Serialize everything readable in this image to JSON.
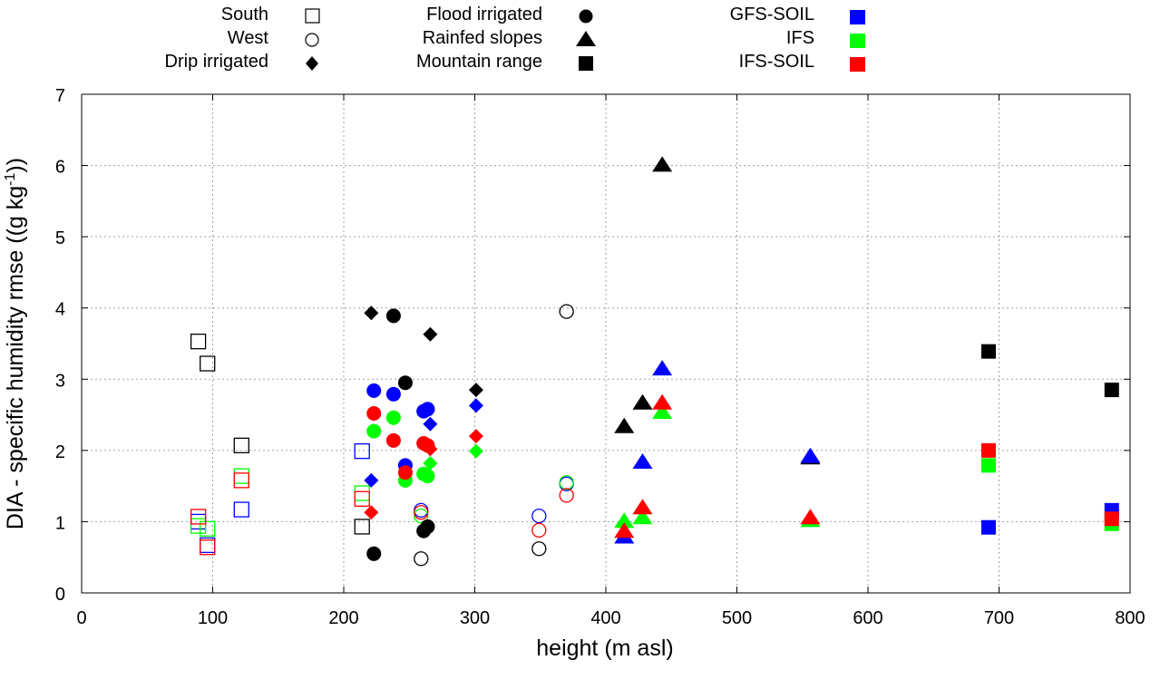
{
  "chart_data": {
    "type": "scatter",
    "title": "",
    "xlabel": "height (m asl)",
    "ylabel_main": "DIA - specific humidity rmse ((g kg",
    "ylabel_sup": "-1",
    "ylabel_end": "))",
    "xlim": [
      0,
      800
    ],
    "ylim": [
      0,
      7
    ],
    "xticks": [
      0,
      100,
      200,
      300,
      400,
      500,
      600,
      700,
      800
    ],
    "yticks": [
      0,
      1,
      2,
      3,
      4,
      5,
      6,
      7
    ],
    "grid": true,
    "legend_position": "top",
    "colors": {
      "OBS": "#000000",
      "GFS-SOIL": "#0000ff",
      "IFS": "#00ff00",
      "IFS-SOIL": "#ff0000"
    },
    "legend": {
      "regions": [
        {
          "label": "South",
          "marker": "open-square"
        },
        {
          "label": "West",
          "marker": "open-circle"
        },
        {
          "label": "Drip irrigated",
          "marker": "filled-diamond"
        },
        {
          "label": "Flood irrigated",
          "marker": "filled-circle"
        },
        {
          "label": "Rainfed slopes",
          "marker": "filled-triangle"
        },
        {
          "label": "Mountain range",
          "marker": "filled-square"
        }
      ],
      "models": [
        {
          "label": "GFS-SOIL",
          "color": "#0000ff"
        },
        {
          "label": "IFS",
          "color": "#00ff00"
        },
        {
          "label": "IFS-SOIL",
          "color": "#ff0000"
        }
      ]
    },
    "series": [
      {
        "region": "South",
        "model": "OBS",
        "marker": "open-square",
        "points": [
          [
            89,
            3.53
          ],
          [
            96,
            3.22
          ],
          [
            122,
            2.07
          ],
          [
            214,
            0.93
          ]
        ]
      },
      {
        "region": "South",
        "model": "GFS-SOIL",
        "marker": "open-square",
        "points": [
          [
            89,
            1.0
          ],
          [
            96,
            0.67
          ],
          [
            122,
            1.17
          ],
          [
            214,
            1.99
          ]
        ]
      },
      {
        "region": "South",
        "model": "IFS",
        "marker": "open-square",
        "points": [
          [
            89,
            0.94
          ],
          [
            96,
            0.9
          ],
          [
            122,
            1.64
          ],
          [
            214,
            1.4
          ]
        ]
      },
      {
        "region": "South",
        "model": "IFS-SOIL",
        "marker": "open-square",
        "points": [
          [
            89,
            1.07
          ],
          [
            96,
            0.64
          ],
          [
            122,
            1.58
          ],
          [
            214,
            1.32
          ]
        ]
      },
      {
        "region": "West",
        "model": "OBS",
        "marker": "open-circle",
        "points": [
          [
            259,
            0.48
          ],
          [
            349,
            0.62
          ],
          [
            370,
            3.95
          ]
        ]
      },
      {
        "region": "West",
        "model": "GFS-SOIL",
        "marker": "open-circle",
        "points": [
          [
            259,
            1.16
          ],
          [
            349,
            1.08
          ],
          [
            370,
            1.53
          ]
        ]
      },
      {
        "region": "West",
        "model": "IFS",
        "marker": "open-circle",
        "points": [
          [
            259,
            1.08
          ],
          [
            370,
            1.55
          ]
        ]
      },
      {
        "region": "West",
        "model": "IFS-SOIL",
        "marker": "open-circle",
        "points": [
          [
            259,
            1.13
          ],
          [
            349,
            0.88
          ],
          [
            370,
            1.37
          ]
        ]
      },
      {
        "region": "Drip irrigated",
        "model": "OBS",
        "marker": "filled-diamond",
        "points": [
          [
            221,
            3.93
          ],
          [
            266,
            3.63
          ],
          [
            301,
            2.85
          ]
        ]
      },
      {
        "region": "Drip irrigated",
        "model": "GFS-SOIL",
        "marker": "filled-diamond",
        "points": [
          [
            221,
            1.58
          ],
          [
            266,
            2.37
          ],
          [
            301,
            2.63
          ]
        ]
      },
      {
        "region": "Drip irrigated",
        "model": "IFS",
        "marker": "filled-diamond",
        "points": [
          [
            266,
            1.82
          ],
          [
            301,
            1.99
          ]
        ]
      },
      {
        "region": "Drip irrigated",
        "model": "IFS-SOIL",
        "marker": "filled-diamond",
        "points": [
          [
            221,
            1.13
          ],
          [
            266,
            2.02
          ],
          [
            301,
            2.2
          ]
        ]
      },
      {
        "region": "Flood irrigated",
        "model": "OBS",
        "marker": "filled-circle",
        "points": [
          [
            223,
            0.55
          ],
          [
            238,
            3.89
          ],
          [
            247,
            2.95
          ],
          [
            261,
            0.87
          ],
          [
            264,
            0.93
          ]
        ]
      },
      {
        "region": "Flood irrigated",
        "model": "GFS-SOIL",
        "marker": "filled-circle",
        "points": [
          [
            223,
            2.84
          ],
          [
            238,
            2.79
          ],
          [
            247,
            1.79
          ],
          [
            261,
            2.55
          ],
          [
            264,
            2.58
          ]
        ]
      },
      {
        "region": "Flood irrigated",
        "model": "IFS",
        "marker": "filled-circle",
        "points": [
          [
            223,
            2.27
          ],
          [
            238,
            2.46
          ],
          [
            247,
            1.58
          ],
          [
            261,
            1.67
          ],
          [
            264,
            1.64
          ]
        ]
      },
      {
        "region": "Flood irrigated",
        "model": "IFS-SOIL",
        "marker": "filled-circle",
        "points": [
          [
            223,
            2.52
          ],
          [
            238,
            2.14
          ],
          [
            247,
            1.69
          ],
          [
            261,
            2.1
          ],
          [
            264,
            2.07
          ]
        ]
      },
      {
        "region": "Rainfed slopes",
        "model": "OBS",
        "marker": "filled-triangle",
        "points": [
          [
            414,
            2.32
          ],
          [
            428,
            2.65
          ],
          [
            443,
            5.99
          ],
          [
            556,
            1.88
          ]
        ]
      },
      {
        "region": "Rainfed slopes",
        "model": "GFS-SOIL",
        "marker": "filled-triangle",
        "points": [
          [
            414,
            0.77
          ],
          [
            428,
            1.82
          ],
          [
            443,
            3.13
          ],
          [
            556,
            1.9
          ]
        ]
      },
      {
        "region": "Rainfed slopes",
        "model": "IFS",
        "marker": "filled-triangle",
        "points": [
          [
            414,
            0.99
          ],
          [
            428,
            1.04
          ],
          [
            443,
            2.52
          ],
          [
            556,
            1.0
          ]
        ]
      },
      {
        "region": "Rainfed slopes",
        "model": "IFS-SOIL",
        "marker": "filled-triangle",
        "points": [
          [
            414,
            0.85
          ],
          [
            428,
            1.18
          ],
          [
            443,
            2.65
          ],
          [
            556,
            1.04
          ]
        ]
      },
      {
        "region": "Mountain range",
        "model": "OBS",
        "marker": "filled-square",
        "points": [
          [
            692,
            3.39
          ],
          [
            786,
            2.85
          ]
        ]
      },
      {
        "region": "Mountain range",
        "model": "GFS-SOIL",
        "marker": "filled-square",
        "points": [
          [
            692,
            0.92
          ],
          [
            786,
            1.16
          ]
        ]
      },
      {
        "region": "Mountain range",
        "model": "IFS",
        "marker": "filled-square",
        "points": [
          [
            692,
            1.79
          ],
          [
            786,
            0.97
          ]
        ]
      },
      {
        "region": "Mountain range",
        "model": "IFS-SOIL",
        "marker": "filled-square",
        "points": [
          [
            692,
            2.0
          ],
          [
            786,
            1.04
          ]
        ]
      }
    ]
  }
}
